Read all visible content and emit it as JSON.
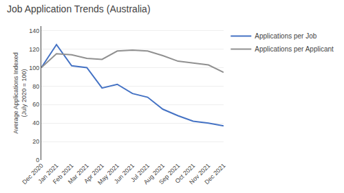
{
  "chart_data": {
    "type": "line",
    "title": "Job Application Trends (Australia)",
    "y_label": "Average Applications Indexed\n(July 2020 = 100)",
    "categories": [
      "Dec 2020",
      "Jan 2021",
      "Feb 2021",
      "Mar 2021",
      "Apr 2021",
      "May 2021",
      "Jun 2021",
      "Jul 2021",
      "Aug 2021",
      "Sep 2021",
      "Oct 2021",
      "Nov 2021",
      "Dec 2021"
    ],
    "series": [
      {
        "name": "Applications per Job",
        "color": "#4472c4",
        "values": [
          100,
          125,
          102,
          100,
          78,
          82,
          72,
          68,
          55,
          48,
          42,
          40,
          37
        ]
      },
      {
        "name": "Applications per Applicant",
        "color": "#909090",
        "values": [
          100,
          115,
          114,
          110,
          109,
          118,
          119,
          118,
          113,
          107,
          105,
          103,
          95
        ]
      }
    ],
    "ylim": [
      0,
      145
    ],
    "yticks": [
      0,
      20,
      40,
      60,
      80,
      100,
      120,
      140
    ],
    "grid": true,
    "legend": "right"
  }
}
